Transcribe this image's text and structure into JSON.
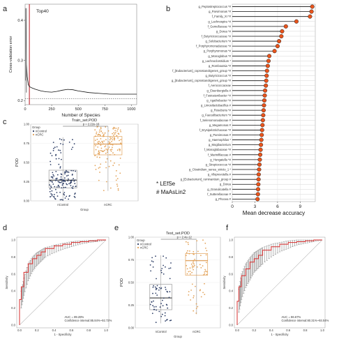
{
  "panel_letters": [
    "a",
    "b",
    "c",
    "d",
    "e",
    "f"
  ],
  "chart_data": [
    {
      "id": "a",
      "type": "line",
      "title": "Top40",
      "xlabel": "Number of Species",
      "ylabel": "Cross-validation error",
      "xticks": [
        "0",
        "250",
        "500",
        "750",
        "1000"
      ],
      "yticks": [
        "0.2",
        "0.3",
        "0.4"
      ],
      "xlim": [
        0,
        1050
      ],
      "ylim": [
        0.19,
        0.44
      ],
      "marker_x": 40,
      "dashed_y": 0.205,
      "x": [
        1,
        3,
        5,
        8,
        12,
        20,
        30,
        40,
        60,
        100,
        150,
        200,
        250,
        300,
        350,
        400,
        450,
        500,
        600,
        700,
        800,
        900,
        1000,
        1050
      ],
      "y": [
        0.42,
        0.42,
        0.4,
        0.36,
        0.3,
        0.26,
        0.24,
        0.235,
        0.232,
        0.228,
        0.224,
        0.222,
        0.221,
        0.223,
        0.226,
        0.228,
        0.227,
        0.224,
        0.22,
        0.218,
        0.216,
        0.216,
        0.216,
        0.216
      ]
    },
    {
      "id": "b",
      "type": "lollipop",
      "xlabel": "Mean decrease accuracy",
      "xticks": [
        "0",
        "3",
        "6",
        "9"
      ],
      "xlim": [
        0,
        11
      ],
      "notes": [
        "* LEfSe",
        "# MaAsLin2"
      ],
      "categories": [
        "g_Peptostreptococcus *#",
        "g_Parvimonas *#",
        "f_Family_XI *#",
        "g_Lachnospira *#",
        "f_Gemellaceae *#",
        "g_Dorea *#",
        "f_Butyricicoccaceae *#",
        "g_Solobacterium *#",
        "f_Porphyromonadaceae *#",
        "g_Porphyromonas *#",
        "g_Monoglobus *#",
        "g_Lachnoclostridium *",
        "g_Romboutsia *#",
        "f_[Eubacterium]_coprostanoligenes_group *#",
        "g_Butyricicoccus *#",
        "g_[Eubacterium]_coprostanoligenes_group *#",
        "f_Aerococcaceae",
        "g_Eisenbergiella #",
        "f_Fusicatenibacter *#",
        "g_Agathobacter *#",
        "g_Limosilactobacillus #",
        "g_Roseburia *#",
        "g_Faecalibacterium *#",
        "f_Selenomonadaceae #",
        "g_Megamonas #",
        "f_Erysipelotrichaceae *#",
        "g_Parvimonas #",
        "g_Haemophilus *",
        "g_Mogibacterium",
        "f_Monoglobaceae *#",
        "f_Marinifilaceae #",
        "g_Hungatella *#",
        "g_Streptococcus *#",
        "g_Clostridium_sensu_stricto_1 *",
        "g_Alloprevotella #",
        "g_[Eubacterium]_ruminantium_group #",
        "g_Dorea",
        "g_Granulicatella #",
        "f_Sutterellaceae #",
        "g_Phocea #"
      ],
      "values": [
        10.6,
        10.5,
        10.3,
        8.5,
        7.1,
        6.6,
        6.5,
        6.2,
        6.0,
        5.6,
        4.9,
        4.8,
        4.7,
        4.6,
        4.55,
        4.5,
        4.45,
        4.35,
        4.3,
        4.25,
        4.2,
        4.15,
        4.1,
        4.05,
        4.0,
        3.95,
        3.9,
        3.85,
        3.8,
        3.75,
        3.7,
        3.65,
        3.6,
        3.55,
        3.5,
        3.48,
        3.45,
        3.42,
        3.4,
        3.35
      ]
    },
    {
      "id": "c",
      "type": "box",
      "title": "Train_set.POD",
      "xlabel": "Group",
      "ylabel": "POD",
      "legend_title": "Group",
      "categories": [
        "nControl",
        "nCRC"
      ],
      "legend_entries": [
        "nControl",
        "nCRC"
      ],
      "colors": [
        "#2d3e66",
        "#e3a35a"
      ],
      "pvalue": "p = 2.22e-16",
      "yticks": [
        "0.00",
        "0.25",
        "0.50",
        "0.75",
        "1.00"
      ],
      "ylim": [
        0,
        1
      ],
      "boxes": [
        {
          "min": 0.0,
          "q1": 0.17,
          "median": 0.27,
          "q3": 0.4,
          "max": 0.83
        },
        {
          "min": 0.13,
          "q1": 0.6,
          "median": 0.74,
          "q3": 0.84,
          "max": 0.97
        }
      ]
    },
    {
      "id": "d",
      "type": "line",
      "subtype": "roc",
      "xlabel": "1 - Specificity",
      "ylabel": "Sensitivity",
      "auc_text": "AUC = 89.28%",
      "ci_text": "Confidence interval:85.84%~92.72%",
      "xticks": [
        "0.0",
        "0.2",
        "0.4",
        "0.6",
        "0.8",
        "1.0"
      ],
      "yticks": [
        "0.0",
        "0.2",
        "0.4",
        "0.6",
        "0.8",
        "1.0"
      ],
      "x": [
        0.0,
        0.02,
        0.05,
        0.1,
        0.15,
        0.2,
        0.25,
        0.3,
        0.4,
        0.5,
        0.6,
        0.7,
        0.8,
        0.9,
        1.0
      ],
      "y": [
        0.0,
        0.3,
        0.45,
        0.62,
        0.72,
        0.78,
        0.82,
        0.86,
        0.9,
        0.93,
        0.95,
        0.97,
        0.98,
        0.99,
        1.0
      ],
      "ci_low": [
        0.0,
        0.2,
        0.35,
        0.52,
        0.63,
        0.7,
        0.75,
        0.8,
        0.85,
        0.89,
        0.92,
        0.95,
        0.97,
        0.98,
        1.0
      ],
      "ci_high": [
        0.0,
        0.4,
        0.55,
        0.72,
        0.8,
        0.85,
        0.88,
        0.91,
        0.94,
        0.96,
        0.98,
        0.99,
        0.995,
        1.0,
        1.0
      ]
    },
    {
      "id": "e",
      "type": "box",
      "title": "Test_set.POD",
      "xlabel": "Group",
      "ylabel": "POD",
      "legend_title": "Group",
      "categories": [
        "nControl",
        "nCRC"
      ],
      "legend_entries": [
        "nControl",
        "nCRC"
      ],
      "colors": [
        "#2d3e66",
        "#e3a35a"
      ],
      "pvalue": "p = 2.4e-12",
      "yticks": [
        "0.00",
        "0.25",
        "0.50",
        "0.75",
        "1.00"
      ],
      "ylim": [
        0,
        1
      ],
      "boxes": [
        {
          "min": 0.05,
          "q1": 0.2,
          "median": 0.33,
          "q3": 0.48,
          "max": 0.8
        },
        {
          "min": 0.15,
          "q1": 0.58,
          "median": 0.74,
          "q3": 0.82,
          "max": 0.97
        }
      ]
    },
    {
      "id": "f",
      "type": "line",
      "subtype": "roc",
      "xlabel": "1 - Specificity",
      "ylabel": "Sensitivity",
      "auc_text": "AUC = 86.67%",
      "ci_text": "Confidence interval:80.31%~93.04%",
      "xticks": [
        "0.0",
        "0.2",
        "0.4",
        "0.6",
        "0.8",
        "1.0"
      ],
      "yticks": [
        "0.0",
        "0.2",
        "0.4",
        "0.6",
        "0.8",
        "1.0"
      ],
      "x": [
        0.0,
        0.02,
        0.05,
        0.1,
        0.15,
        0.2,
        0.25,
        0.3,
        0.4,
        0.5,
        0.6,
        0.7,
        0.8,
        0.9,
        1.0
      ],
      "y": [
        0.0,
        0.28,
        0.45,
        0.58,
        0.66,
        0.74,
        0.78,
        0.82,
        0.88,
        0.92,
        0.95,
        0.97,
        0.98,
        0.99,
        1.0
      ],
      "ci_low": [
        0.0,
        0.15,
        0.3,
        0.44,
        0.53,
        0.62,
        0.67,
        0.72,
        0.8,
        0.86,
        0.9,
        0.94,
        0.96,
        0.98,
        1.0
      ],
      "ci_high": [
        0.0,
        0.42,
        0.6,
        0.72,
        0.79,
        0.85,
        0.88,
        0.91,
        0.95,
        0.97,
        0.99,
        1.0,
        1.0,
        1.0,
        1.0
      ]
    }
  ]
}
